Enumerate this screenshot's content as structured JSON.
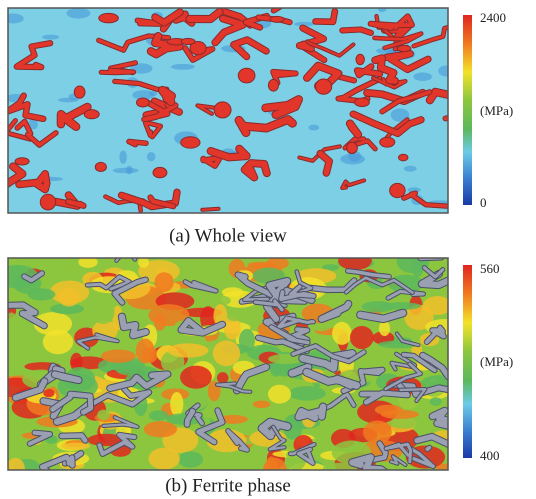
{
  "panels": [
    {
      "caption": "(a) Whole view",
      "colorbar": {
        "max": 2400,
        "unit": "(MPa)",
        "min": 0
      }
    },
    {
      "caption": "(b) Ferrite phase",
      "colorbar": {
        "max": 560,
        "unit": "(MPa)",
        "min": 400
      }
    }
  ]
}
